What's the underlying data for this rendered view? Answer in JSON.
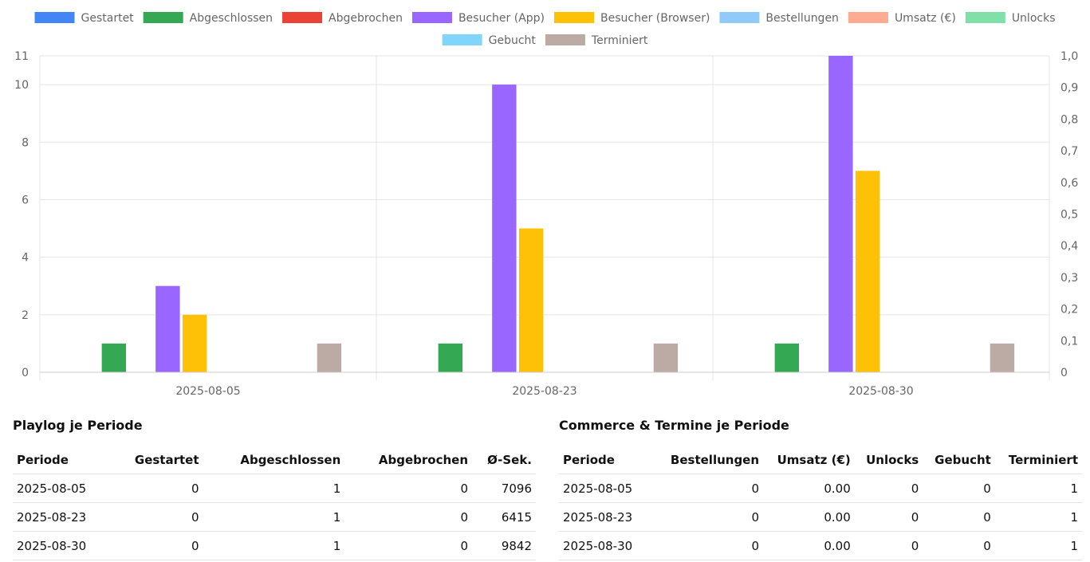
{
  "chart_data": {
    "type": "bar",
    "categories": [
      "2025-08-05",
      "2025-08-23",
      "2025-08-30"
    ],
    "series": [
      {
        "name": "Gestartet",
        "color": "#4285f4",
        "values": [
          0,
          0,
          0
        ]
      },
      {
        "name": "Abgeschlossen",
        "color": "#34a853",
        "values": [
          1,
          1,
          1
        ]
      },
      {
        "name": "Abgebrochen",
        "color": "#ea4335",
        "values": [
          0,
          0,
          0
        ]
      },
      {
        "name": "Besucher (App)",
        "color": "#9966ff",
        "values": [
          3,
          10,
          11
        ]
      },
      {
        "name": "Besucher (Browser)",
        "color": "#ffc107",
        "values": [
          2,
          5,
          7
        ]
      },
      {
        "name": "Bestellungen",
        "color": "#90caf9",
        "values": [
          0,
          0,
          0
        ]
      },
      {
        "name": "Umsatz (€)",
        "color": "#ffab91",
        "values": [
          0,
          0,
          0
        ]
      },
      {
        "name": "Unlocks",
        "color": "#80e0a7",
        "values": [
          0,
          0,
          0
        ]
      },
      {
        "name": "Gebucht",
        "color": "#81d4fa",
        "values": [
          0,
          0,
          0
        ]
      },
      {
        "name": "Terminiert",
        "color": "#bcaaa4",
        "values": [
          1,
          1,
          1
        ]
      }
    ],
    "y_left": {
      "ylim": [
        0,
        11
      ],
      "ticks": [
        "0",
        "2",
        "4",
        "6",
        "8",
        "10",
        "11"
      ]
    },
    "y_right": {
      "ylim": [
        0,
        1
      ],
      "ticks": [
        "0",
        "0,1",
        "0,2",
        "0,3",
        "0,4",
        "0,5",
        "0,6",
        "0,7",
        "0,8",
        "0,9",
        "1,0"
      ]
    },
    "legend_position": "top-center",
    "grid": true
  },
  "playlog": {
    "title": "Playlog je Periode",
    "columns": [
      "Periode",
      "Gestartet",
      "Abgeschlossen",
      "Abgebrochen",
      "Ø-Sek."
    ],
    "rows": [
      [
        "2025-08-05",
        "0",
        "1",
        "0",
        "7096"
      ],
      [
        "2025-08-23",
        "0",
        "1",
        "0",
        "6415"
      ],
      [
        "2025-08-30",
        "0",
        "1",
        "0",
        "9842"
      ]
    ]
  },
  "commerce": {
    "title": "Commerce & Termine je Periode",
    "columns": [
      "Periode",
      "Bestellungen",
      "Umsatz (€)",
      "Unlocks",
      "Gebucht",
      "Terminiert"
    ],
    "rows": [
      [
        "2025-08-05",
        "0",
        "0.00",
        "0",
        "0",
        "1"
      ],
      [
        "2025-08-23",
        "0",
        "0.00",
        "0",
        "0",
        "1"
      ],
      [
        "2025-08-30",
        "0",
        "0.00",
        "0",
        "0",
        "1"
      ]
    ]
  }
}
